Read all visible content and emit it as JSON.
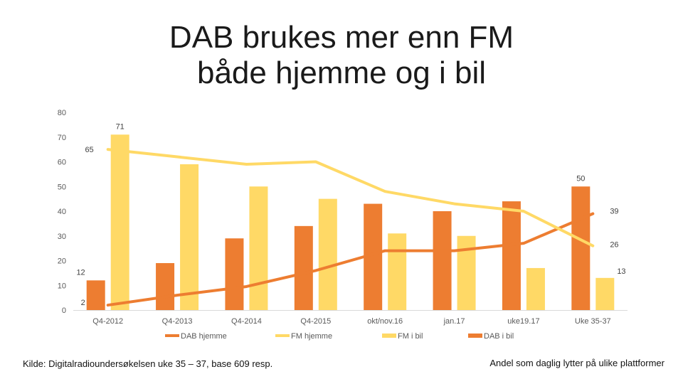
{
  "title": {
    "line1": "DAB brukes mer enn FM",
    "line2": "både hjemme og i bil"
  },
  "chart_data": {
    "type": "bar",
    "categories": [
      "Q4-2012",
      "Q4-2013",
      "Q4-2014",
      "Q4-2015",
      "okt/nov.16",
      "jan.17",
      "uke19.17",
      "Uke 35-37"
    ],
    "ylim": [
      0,
      80
    ],
    "yticks": [
      0,
      10,
      20,
      30,
      40,
      50,
      60,
      70,
      80
    ],
    "grid": false,
    "legend_position": "bottom",
    "bar_series": [
      {
        "name": "DAB i bil",
        "values": [
          12,
          19,
          29,
          34,
          43,
          40,
          44,
          50
        ],
        "color": "#ED7D31"
      },
      {
        "name": "FM i bil",
        "values": [
          71,
          59,
          50,
          45,
          31,
          30,
          17,
          13
        ],
        "color": "#FFD966"
      }
    ],
    "line_series": [
      {
        "name": "DAB hjemme",
        "values": [
          2,
          6,
          9.5,
          16,
          24,
          24,
          27,
          39
        ],
        "color": "#ED7D31"
      },
      {
        "name": "FM hjemme",
        "values": [
          65,
          62,
          59,
          60,
          48,
          43,
          40,
          26
        ],
        "color": "#FFD966"
      }
    ],
    "data_labels": [
      {
        "series": "FM i bil",
        "index": 0,
        "text": "71"
      },
      {
        "series": "FM hjemme",
        "index": 0,
        "text": "65"
      },
      {
        "series": "DAB i bil",
        "index": 0,
        "text": "12"
      },
      {
        "series": "DAB hjemme",
        "index": 0,
        "text": "2"
      },
      {
        "series": "DAB i bil",
        "index": 7,
        "text": "50"
      },
      {
        "series": "DAB hjemme",
        "index": 7,
        "text": "39"
      },
      {
        "series": "FM hjemme",
        "index": 7,
        "text": "26"
      },
      {
        "series": "FM i bil",
        "index": 7,
        "text": "13"
      }
    ],
    "legend": [
      "DAB hjemme",
      "FM hjemme",
      "FM i bil",
      "DAB i bil"
    ]
  },
  "source": "Kilde: Digitalradioundersøkelsen uke 35 – 37, base 609 resp.",
  "note": "Andel som daglig lytter på ulike plattformer"
}
